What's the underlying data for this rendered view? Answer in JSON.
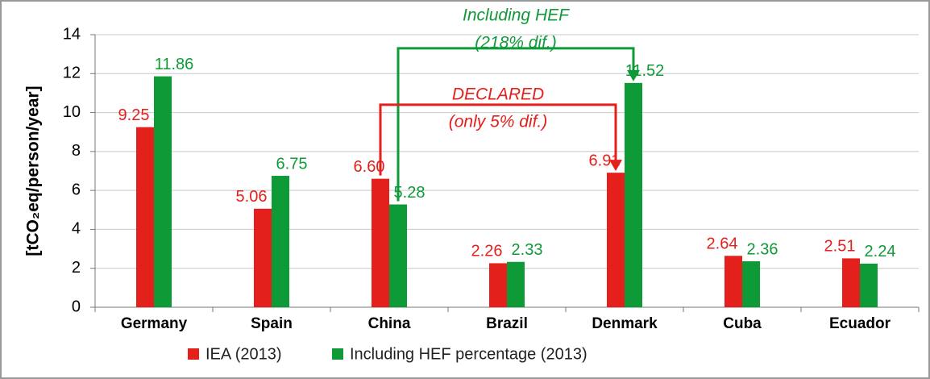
{
  "chart_data": {
    "type": "bar",
    "y_label": "[tCO₂eq/person/year]",
    "categories": [
      "Germany",
      "Spain",
      "China",
      "Brazil",
      "Denmark",
      "Cuba",
      "Ecuador"
    ],
    "series": [
      {
        "name": "IEA (2013)",
        "color": "#e3201b",
        "values": [
          9.25,
          5.06,
          6.6,
          2.26,
          6.91,
          2.64,
          2.51
        ],
        "value_labels": [
          "9.25",
          "5.06",
          "6.60",
          "2.26",
          "6.91",
          "2.64",
          "2.51"
        ]
      },
      {
        "name": "Including HEF percentage (2013)",
        "color": "#0f9a38",
        "values": [
          11.86,
          6.75,
          5.28,
          2.33,
          11.52,
          2.36,
          2.24
        ],
        "value_labels": [
          "11.86",
          "6.75",
          "5.28",
          "2.33",
          "11.52",
          "2.36",
          "2.24"
        ]
      }
    ],
    "annotations": [
      {
        "lines": [
          "Including HEF",
          "(218% dif.)"
        ],
        "color": "#0f9a38"
      },
      {
        "lines": [
          "DECLARED",
          "(only 5% dif.)"
        ],
        "color": "#e3201b"
      }
    ],
    "ylim": [
      0,
      14
    ],
    "yticks": [
      0,
      2,
      4,
      6,
      8,
      10,
      12,
      14
    ],
    "grid": true,
    "legend": "bottom"
  }
}
